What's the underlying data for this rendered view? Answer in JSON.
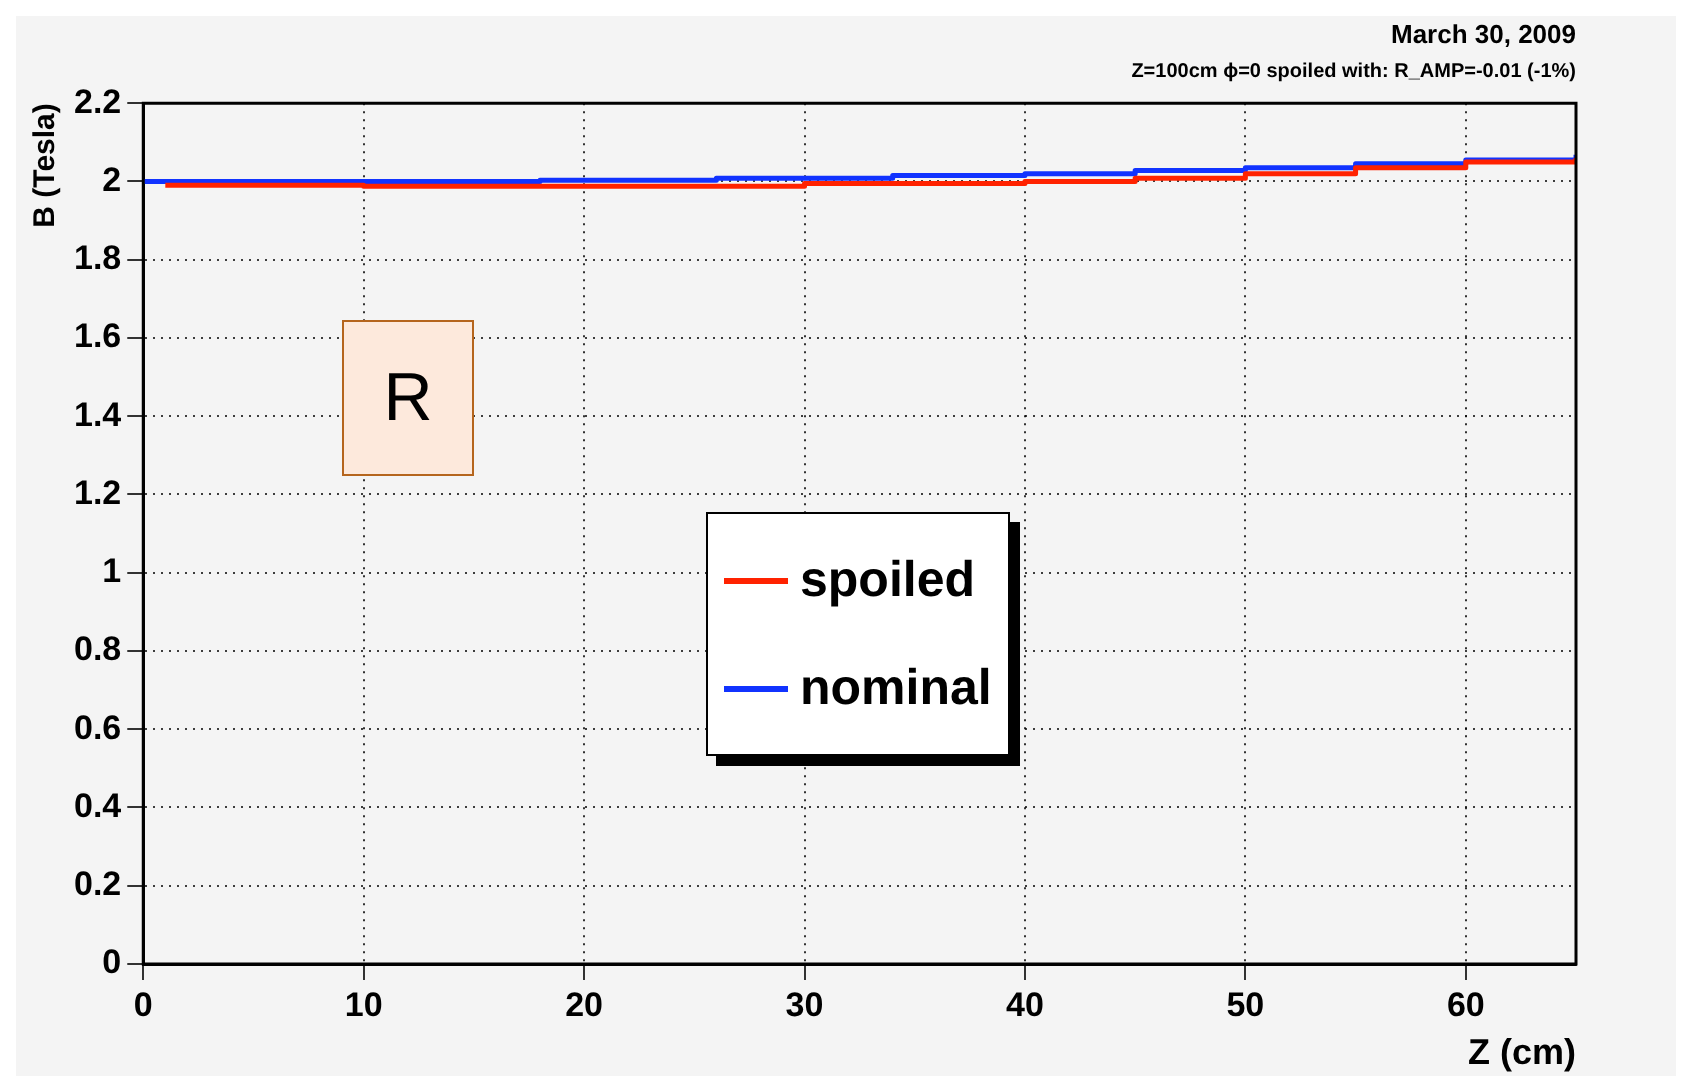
{
  "chart_data": {
    "type": "step",
    "title": "March 30, 2009",
    "subtitle": "Z=100cm ϕ=0 spoiled with: R_AMP=-0.01 (-1%)",
    "xlabel": "Z (cm)",
    "ylabel": "B (Tesla)",
    "series": [
      {
        "name": "spoiled",
        "color": "#ff2200",
        "x": [
          1,
          10,
          18,
          30,
          40,
          45,
          50,
          55,
          60,
          65
        ],
        "values": [
          1.99,
          1.988,
          1.988,
          1.995,
          2.0,
          2.008,
          2.02,
          2.035,
          2.05,
          2.06
        ]
      },
      {
        "name": "nominal",
        "color": "#1133ff",
        "x": [
          0,
          18,
          26,
          34,
          40,
          45,
          50,
          55,
          60,
          65
        ],
        "values": [
          2.0,
          2.003,
          2.008,
          2.015,
          2.02,
          2.028,
          2.035,
          2.045,
          2.055,
          2.068
        ]
      }
    ],
    "xlim": [
      0,
      65
    ],
    "xticks": [
      0,
      10,
      20,
      30,
      40,
      50,
      60
    ],
    "ylim": [
      0,
      2.2
    ],
    "yticks": [
      0,
      0.2,
      0.4,
      0.6,
      0.8,
      1,
      1.2,
      1.4,
      1.6,
      1.8,
      2,
      2.2
    ],
    "annotations": [
      "R"
    ],
    "grid": true,
    "legend": "center",
    "line_style": "solid",
    "marker": "none"
  }
}
